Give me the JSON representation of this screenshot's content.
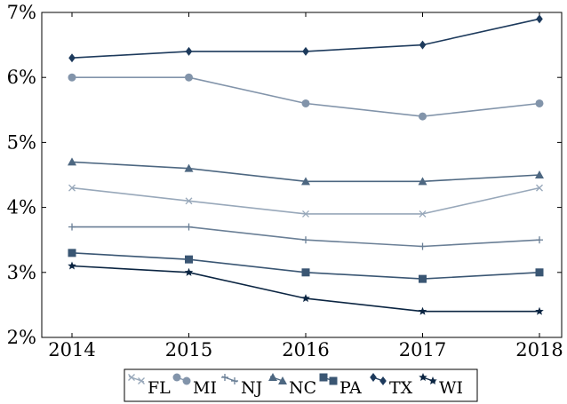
{
  "chart_data": {
    "type": "line",
    "x": [
      2014,
      2015,
      2016,
      2017,
      2018
    ],
    "x_tick_labels": [
      "2014",
      "2015",
      "2016",
      "2017",
      "2018"
    ],
    "y_tick_labels": [
      "2%",
      "3%",
      "4%",
      "5%",
      "6%",
      "7%"
    ],
    "ylim": [
      2,
      7
    ],
    "y_unit": "%",
    "grid": false,
    "legend_position": "bottom-center",
    "series": [
      {
        "name": "FL",
        "values": [
          4.3,
          4.1,
          3.9,
          3.9,
          4.3
        ],
        "color": "#98a8ba",
        "marker": "x"
      },
      {
        "name": "MI",
        "values": [
          6.0,
          6.0,
          5.6,
          5.4,
          5.6
        ],
        "color": "#8294aa",
        "marker": "circle"
      },
      {
        "name": "NJ",
        "values": [
          3.7,
          3.7,
          3.5,
          3.4,
          3.5
        ],
        "color": "#6a7f96",
        "marker": "plus"
      },
      {
        "name": "NC",
        "values": [
          4.7,
          4.6,
          4.4,
          4.4,
          4.5
        ],
        "color": "#4d6781",
        "marker": "triangle"
      },
      {
        "name": "PA",
        "values": [
          3.3,
          3.2,
          3.0,
          2.9,
          3.0
        ],
        "color": "#3a5673",
        "marker": "square"
      },
      {
        "name": "TX",
        "values": [
          6.3,
          6.4,
          6.4,
          6.5,
          6.9
        ],
        "color": "#1d3a5c",
        "marker": "diamond"
      },
      {
        "name": "WI",
        "values": [
          3.1,
          3.0,
          2.6,
          2.4,
          2.4
        ],
        "color": "#0b2542",
        "marker": "star"
      }
    ]
  }
}
